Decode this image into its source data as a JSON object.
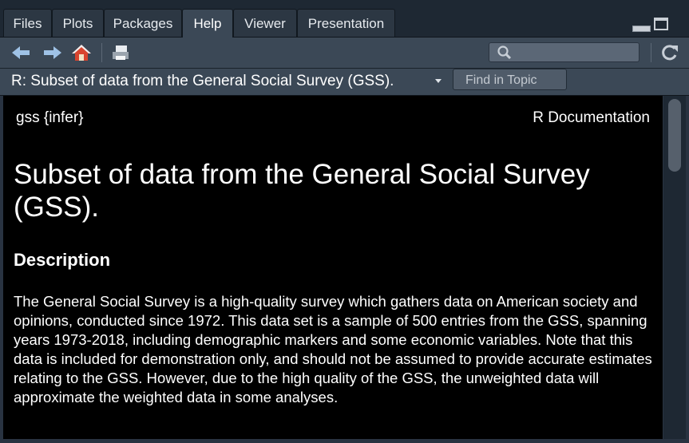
{
  "tabs": [
    {
      "label": "Files"
    },
    {
      "label": "Plots"
    },
    {
      "label": "Packages"
    },
    {
      "label": "Help"
    },
    {
      "label": "Viewer"
    },
    {
      "label": "Presentation"
    }
  ],
  "active_tab": "Help",
  "toolbar": {
    "icons": [
      "back-arrow-icon",
      "forward-arrow-icon",
      "home-icon",
      "print-icon",
      "search-icon",
      "refresh-icon"
    ],
    "search_value": ""
  },
  "topic": {
    "title": "R: Subset of data from the General Social Survey (GSS).",
    "find_placeholder": "Find in Topic"
  },
  "doc": {
    "package": "gss {infer}",
    "r_documentation": "R Documentation",
    "title": "Subset of data from the General Social Survey (GSS).",
    "section_heading": "Description",
    "description": "The General Social Survey is a high-quality survey which gathers data on American society and opinions, conducted since 1972. This data set is a sample of 500 entries from the GSS, spanning years 1973-2018, including demographic markers and some economic variables. Note that this data is included for demonstration only, and should not be assumed to provide accurate estimates relating to the GSS. However, due to the high quality of the GSS, the unweighted data will approximate the weighted data in some analyses."
  }
}
